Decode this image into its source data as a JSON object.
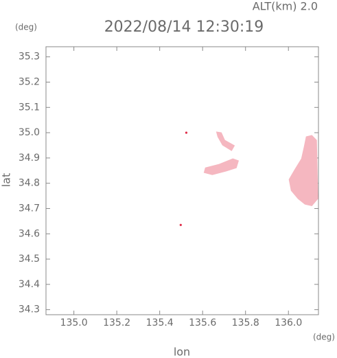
{
  "chart_data": {
    "type": "area",
    "title": "2022/08/14 12:30:19",
    "subtitle": "ALT(km) 2.0",
    "xlabel": "lon",
    "ylabel": "lat",
    "xunit": "(deg)",
    "yunit": "(deg)",
    "xlim": [
      134.87,
      136.14
    ],
    "ylim": [
      34.28,
      35.34
    ],
    "xticks": [
      {
        "value": 135.0,
        "label": "135.0"
      },
      135.2,
      135.4,
      135.6,
      135.8,
      {
        "value": 136.0,
        "label": "136.0"
      }
    ],
    "yticks": [
      34.3,
      34.4,
      34.5,
      34.6,
      34.7,
      34.8,
      34.9,
      {
        "value": 35.0,
        "label": "35.0"
      },
      35.1,
      35.2,
      35.3
    ],
    "color": "#f5b7c0",
    "point_color": "#e0304c",
    "echoes": [
      {
        "x": [
          136.083,
          136.109,
          136.131,
          136.137,
          136.109,
          136.077,
          136.045,
          136.013,
          136.003,
          136.029,
          136.061,
          136.073
        ],
        "y": [
          34.984,
          34.989,
          34.97,
          34.739,
          34.711,
          34.717,
          34.739,
          34.771,
          34.815,
          34.853,
          34.897,
          34.943
        ]
      },
      {
        "x": [
          135.613,
          135.677,
          135.741,
          135.767,
          135.757,
          135.709,
          135.645,
          135.607
        ],
        "y": [
          34.861,
          34.875,
          34.897,
          34.889,
          34.861,
          34.848,
          34.834,
          34.842
        ]
      },
      {
        "x": [
          135.665,
          135.687,
          135.703,
          135.748,
          135.735,
          135.693,
          135.671
        ],
        "y": [
          35.003,
          35.0,
          34.97,
          34.949,
          34.929,
          34.951,
          34.984
        ]
      }
    ],
    "points": {
      "x": [
        135.498,
        135.524
      ],
      "y": [
        34.635,
        35.0
      ]
    }
  }
}
